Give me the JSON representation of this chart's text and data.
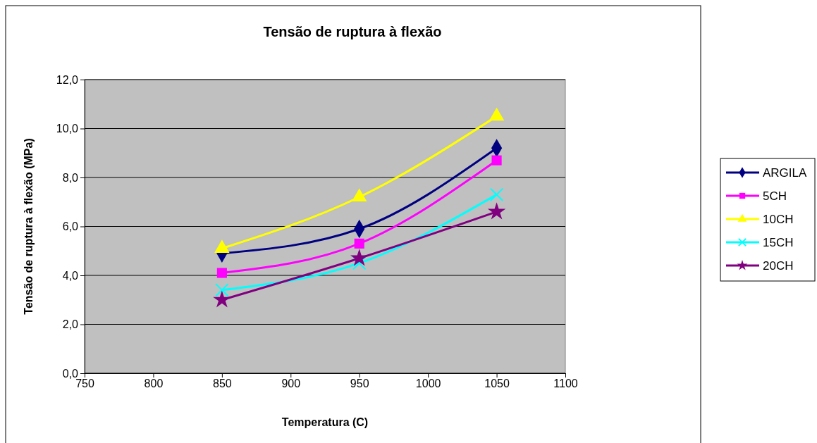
{
  "chart_data": {
    "type": "line",
    "title": "Tensão de ruptura à flexão",
    "xlabel": "Temperatura (C)",
    "ylabel": "Tensão de ruptura à flexão (MPa)",
    "x": [
      850,
      950,
      1050
    ],
    "xlim": [
      750,
      1100
    ],
    "xticks": [
      750,
      800,
      850,
      900,
      950,
      1000,
      1050,
      1100
    ],
    "ylim": [
      0,
      12
    ],
    "yticks": [
      {
        "value": 0,
        "label": "0,0"
      },
      {
        "value": 2,
        "label": "2,0"
      },
      {
        "value": 4,
        "label": "4,0"
      },
      {
        "value": 6,
        "label": "6,0"
      },
      {
        "value": 8,
        "label": "8,0"
      },
      {
        "value": 10,
        "label": "10,0"
      },
      {
        "value": 12,
        "label": "12,0"
      }
    ],
    "grid": "y",
    "legend": "right",
    "series": [
      {
        "name": "ARGILA",
        "color": "#000080",
        "marker": "diamond",
        "values": [
          4.9,
          5.9,
          9.2
        ]
      },
      {
        "name": "5CH",
        "color": "#ff00ff",
        "marker": "square",
        "values": [
          4.1,
          5.3,
          8.7
        ]
      },
      {
        "name": "10CH",
        "color": "#ffff00",
        "marker": "triangle",
        "values": [
          5.1,
          7.2,
          10.5
        ]
      },
      {
        "name": "15CH",
        "color": "#00ffff",
        "marker": "cross",
        "values": [
          3.4,
          4.5,
          7.3
        ]
      },
      {
        "name": "20CH",
        "color": "#800080",
        "marker": "star",
        "values": [
          3.0,
          4.7,
          6.6
        ]
      }
    ]
  }
}
